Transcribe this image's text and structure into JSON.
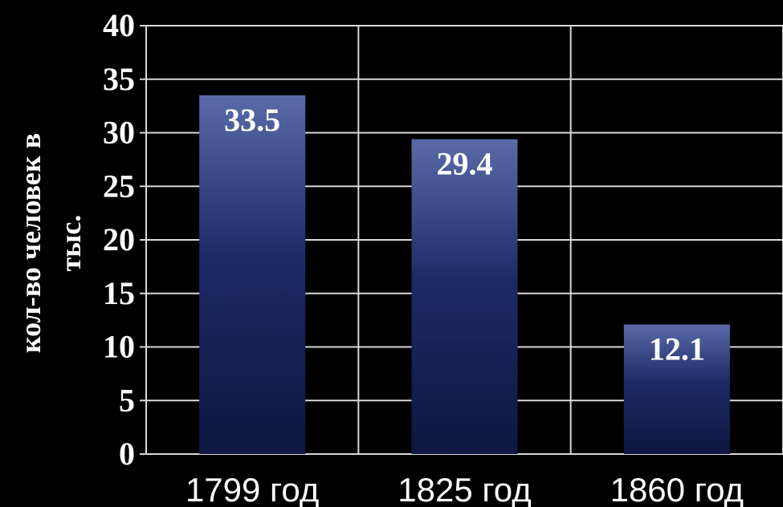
{
  "chart_data": {
    "type": "bar",
    "title": "",
    "xlabel": "",
    "ylabel": "кол-во человек в тыс.",
    "ylabel_lines": [
      "кол-во человек в",
      "тыс."
    ],
    "categories": [
      "1799 год",
      "1825 год",
      "1860 год"
    ],
    "values": [
      33.5,
      29.4,
      12.1
    ],
    "data_labels": [
      "33.5",
      "29.4",
      "12.1"
    ],
    "ylim": [
      0,
      40
    ],
    "yticks": [
      "0",
      "5",
      "10",
      "15",
      "20",
      "25",
      "30",
      "35",
      "40"
    ],
    "grid": true,
    "legend": "none"
  },
  "colors": {
    "background": "#000000",
    "grid": "#d9d9d9",
    "bar_top": "#5a6aa8",
    "bar_mid": "#1c2a66",
    "bar_bottom": "#0e1740",
    "text": "#ffffff"
  }
}
